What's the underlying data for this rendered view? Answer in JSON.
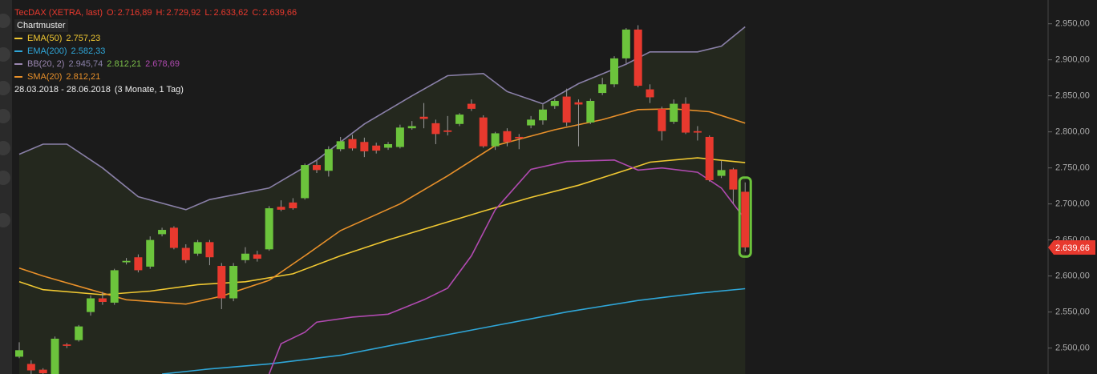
{
  "chart_data": {
    "type": "candlestick",
    "title": "TecDAX (XETRA, last)",
    "header_keys": [
      "O:",
      "H:",
      "L:",
      "C:"
    ],
    "last_labels": {
      "o": "2.716,89",
      "h": "2.729,92",
      "l": "2.633,62",
      "c": "2.639,66"
    },
    "pattern_label": "Chartmuster",
    "date_range": "28.03.2018 - 28.06.2018",
    "period": "(3 Monate, 1 Tag)",
    "up_color": "#6cc43c",
    "down_color": "#e8392e",
    "candles": {
      "o": [
        2488,
        2478,
        2470,
        2464,
        2505,
        2511,
        2550,
        2569,
        2563,
        2619,
        2626,
        2613,
        2658,
        2667,
        2639,
        2631,
        2647,
        2614,
        2569,
        2622,
        2630,
        2637,
        2696,
        2702,
        2708,
        2754,
        2746,
        2776,
        2790,
        2786,
        2781,
        2778,
        2779,
        2805,
        2821,
        2812,
        2802,
        2811,
        2839,
        2820,
        2780,
        2801,
        2793,
        2809,
        2816,
        2836,
        2849,
        2841,
        2813,
        2854,
        2866,
        2902,
        2942,
        2859,
        2832,
        2814,
        2839,
        2801,
        2793,
        2739,
        2748,
        2716.89
      ],
      "h": [
        2508,
        2483,
        2472,
        2516,
        2507,
        2532,
        2573,
        2578,
        2610,
        2625,
        2630,
        2655,
        2667,
        2669,
        2644,
        2650,
        2650,
        2618,
        2618,
        2640,
        2635,
        2697,
        2705,
        2708,
        2756,
        2760,
        2780,
        2793,
        2796,
        2792,
        2785,
        2786,
        2810,
        2815,
        2840,
        2817,
        2822,
        2826,
        2845,
        2823,
        2800,
        2805,
        2797,
        2822,
        2838,
        2846,
        2860,
        2845,
        2846,
        2875,
        2905,
        2944,
        2948,
        2866,
        2835,
        2845,
        2848,
        2808,
        2795,
        2760,
        2750,
        2729.92
      ],
      "l": [
        2486,
        2464,
        2464,
        2462,
        2500,
        2509,
        2545,
        2560,
        2560,
        2616,
        2605,
        2610,
        2655,
        2637,
        2618,
        2628,
        2615,
        2554,
        2565,
        2618,
        2620,
        2635,
        2690,
        2692,
        2706,
        2743,
        2738,
        2773,
        2774,
        2765,
        2770,
        2775,
        2777,
        2803,
        2805,
        2783,
        2795,
        2808,
        2829,
        2778,
        2775,
        2780,
        2776,
        2805,
        2810,
        2832,
        2808,
        2780,
        2811,
        2851,
        2862,
        2895,
        2862,
        2840,
        2788,
        2811,
        2797,
        2788,
        2731,
        2736,
        2700,
        2633.62
      ],
      "c": [
        2497,
        2469,
        2465,
        2513,
        2503,
        2530,
        2569,
        2564,
        2608,
        2621,
        2608,
        2650,
        2664,
        2639,
        2622,
        2647,
        2626,
        2569,
        2614,
        2631,
        2624,
        2694,
        2692,
        2694,
        2754,
        2747,
        2776,
        2787,
        2777,
        2773,
        2774,
        2783,
        2806,
        2808,
        2818,
        2797,
        2800,
        2824,
        2832,
        2780,
        2798,
        2786,
        2791,
        2817,
        2831,
        2843,
        2813,
        2838,
        2843,
        2866,
        2902,
        2942,
        2864,
        2848,
        2801,
        2839,
        2799,
        2799,
        2733,
        2747,
        2720,
        2639.66
      ]
    },
    "indicators": [
      {
        "name": "EMA(50)",
        "color": "#f0c832",
        "last_label": "2.757,23",
        "x": [
          0,
          2,
          7,
          11,
          15,
          19,
          23,
          27,
          31,
          35,
          39,
          43,
          47,
          51,
          53,
          57,
          61
        ],
        "values": [
          2592,
          2581,
          2574,
          2579,
          2588,
          2592,
          2603,
          2628,
          2650,
          2670,
          2690,
          2709,
          2726,
          2747,
          2758,
          2764,
          2757.23
        ]
      },
      {
        "name": "EMA(200)",
        "color": "#2fa6d8",
        "last_label": "2.582,33",
        "x": [
          12,
          16,
          21,
          27,
          32,
          39,
          46,
          52,
          57,
          61
        ],
        "values": [
          2464,
          2471,
          2478,
          2490,
          2506,
          2528,
          2550,
          2566,
          2576,
          2582.33
        ]
      },
      {
        "name": "BB(20, 2)",
        "color": "#9a86b0",
        "bands": [
          {
            "color": "#8a80a8",
            "last_label": "2.945,74",
            "x": [
              0,
              2,
              4,
              7,
              10,
              14,
              16,
              21,
              25,
              29,
              33,
              36,
              39,
              41,
              44,
              47,
              51,
              53,
              57,
              59,
              61
            ],
            "values": [
              2769,
              2783,
              2783,
              2750,
              2710,
              2692,
              2706,
              2722,
              2761,
              2811,
              2850,
              2878,
              2881,
              2856,
              2839,
              2867,
              2894,
              2911,
              2911,
              2919,
              2945.74
            ]
          },
          {
            "color": "#7cc04a",
            "last_label": "2.812,21"
          },
          {
            "color": "#b04ab0",
            "last_label": "2.678,69",
            "x": [
              21,
              22,
              24,
              25,
              28,
              31,
              34,
              36,
              38,
              40,
              43,
              46,
              50,
              52,
              54,
              57,
              59,
              61
            ],
            "values": [
              2464,
              2506,
              2522,
              2536,
              2543,
              2547,
              2567,
              2583,
              2628,
              2692,
              2748,
              2759,
              2761,
              2747,
              2750,
              2744,
              2722,
              2678.69
            ]
          }
        ]
      },
      {
        "name": "SMA(20)",
        "color": "#e8902a",
        "last_label": "2.812,21",
        "x": [
          0,
          2,
          6,
          9,
          14,
          17,
          21,
          24,
          27,
          32,
          36,
          40,
          45,
          49,
          52,
          55,
          58,
          61
        ],
        "values": [
          2611,
          2600,
          2581,
          2567,
          2561,
          2572,
          2594,
          2628,
          2663,
          2700,
          2739,
          2781,
          2803,
          2817,
          2831,
          2832,
          2828,
          2812.21
        ]
      }
    ],
    "ylim": [
      2464,
      2983
    ],
    "yticks": [
      {
        "value": 2500,
        "label": "2.500,00"
      },
      {
        "value": 2550,
        "label": "2.550,00"
      },
      {
        "value": 2600,
        "label": "2.600,00"
      },
      {
        "value": 2650,
        "label": "2.650,00"
      },
      {
        "value": 2700,
        "label": "2.700,00"
      },
      {
        "value": 2750,
        "label": "2.750,00"
      },
      {
        "value": 2800,
        "label": "2.800,00"
      },
      {
        "value": 2850,
        "label": "2.850,00"
      },
      {
        "value": 2900,
        "label": "2.900,00"
      },
      {
        "value": 2950,
        "label": "2.950,00"
      }
    ]
  }
}
